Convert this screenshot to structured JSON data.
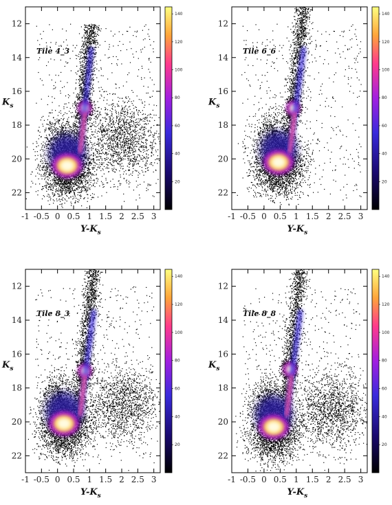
{
  "chart_data": [
    {
      "type": "scatter",
      "title": "Tile 4_3",
      "xlabel": "Y-K_s",
      "ylabel": "K_s",
      "xlim": [
        -1,
        3.2
      ],
      "ylim": [
        23,
        11
      ],
      "x_ticks": [
        "-1",
        "-0.5",
        "0",
        "0.5",
        "1",
        "1.5",
        "2",
        "2.5",
        "3"
      ],
      "y_ticks": [
        "12",
        "14",
        "16",
        "18",
        "20",
        "22"
      ],
      "colorbar": {
        "range": [
          0,
          145
        ],
        "ticks": [
          "20",
          "40",
          "60",
          "80",
          "100",
          "120",
          "140"
        ]
      },
      "grid": false,
      "features": [
        {
          "name": "main-sequence-clump",
          "x": 0.3,
          "y": 20.4,
          "density": 140
        },
        {
          "name": "red-clump",
          "x": 0.85,
          "y": 17.0,
          "density": 130
        },
        {
          "name": "red-giant-branch",
          "x_range": [
            0.6,
            1.2
          ],
          "y_range": [
            12,
            20
          ],
          "density": 60
        },
        {
          "name": "red-plume",
          "x": 2.0,
          "y": 18.8,
          "density": 25
        }
      ]
    },
    {
      "type": "scatter",
      "title": "Tile 6_6",
      "xlabel": "Y-K_s",
      "ylabel": "K_s",
      "xlim": [
        -1,
        3.2
      ],
      "ylim": [
        23,
        11
      ],
      "x_ticks": [
        "-1",
        "-0.5",
        "0",
        "0.5",
        "1",
        "1.5",
        "2",
        "2.5",
        "3"
      ],
      "y_ticks": [
        "12",
        "14",
        "16",
        "18",
        "20",
        "22"
      ],
      "colorbar": {
        "range": [
          0,
          145
        ],
        "ticks": [
          "20",
          "40",
          "60",
          "80",
          "100",
          "120",
          "140"
        ]
      },
      "grid": false,
      "features": [
        {
          "name": "main-sequence-clump",
          "x": 0.45,
          "y": 20.2,
          "density": 145
        },
        {
          "name": "red-clump",
          "x": 0.9,
          "y": 17.0,
          "density": 140
        },
        {
          "name": "red-giant-branch",
          "x_range": [
            0.7,
            1.4
          ],
          "y_range": [
            11,
            20
          ],
          "density": 55
        }
      ]
    },
    {
      "type": "scatter",
      "title": "Tile 8_3",
      "xlabel": "Y-K_s",
      "ylabel": "K_s",
      "xlim": [
        -1,
        3.2
      ],
      "ylim": [
        23,
        11
      ],
      "x_ticks": [
        "-1",
        "-0.5",
        "0",
        "0.5",
        "1",
        "1.5",
        "2",
        "2.5",
        "3"
      ],
      "y_ticks": [
        "12",
        "14",
        "16",
        "18",
        "20",
        "22"
      ],
      "colorbar": {
        "range": [
          0,
          145
        ],
        "ticks": [
          "20",
          "40",
          "60",
          "80",
          "100",
          "120",
          "140"
        ]
      },
      "grid": false,
      "features": [
        {
          "name": "main-sequence-clump",
          "x": 0.2,
          "y": 20.1,
          "density": 145
        },
        {
          "name": "red-clump",
          "x": 0.85,
          "y": 17.0,
          "density": 120
        },
        {
          "name": "red-giant-branch",
          "x_range": [
            0.6,
            1.3
          ],
          "y_range": [
            11,
            20
          ],
          "density": 55
        },
        {
          "name": "red-plume",
          "x": 2.0,
          "y": 18.9,
          "density": 25
        }
      ]
    },
    {
      "type": "scatter",
      "title": "Tile 8_8",
      "xlabel": "Y-K_s",
      "ylabel": "K_s",
      "xlim": [
        -1,
        3.2
      ],
      "ylim": [
        23,
        11
      ],
      "x_ticks": [
        "-1",
        "-0.5",
        "0",
        "0.5",
        "1",
        "1.5",
        "2",
        "2.5",
        "3"
      ],
      "y_ticks": [
        "12",
        "14",
        "16",
        "18",
        "20",
        "22"
      ],
      "colorbar": {
        "range": [
          0,
          145
        ],
        "ticks": [
          "20",
          "40",
          "60",
          "80",
          "100",
          "120",
          "140"
        ]
      },
      "grid": false,
      "features": [
        {
          "name": "main-sequence-clump",
          "x": 0.3,
          "y": 20.3,
          "density": 135
        },
        {
          "name": "red-clump",
          "x": 0.8,
          "y": 16.9,
          "density": 110
        },
        {
          "name": "red-giant-branch",
          "x_range": [
            0.6,
            1.3
          ],
          "y_range": [
            11,
            20
          ],
          "density": 50
        },
        {
          "name": "red-plume",
          "x": 2.1,
          "y": 19.2,
          "density": 25
        }
      ]
    }
  ]
}
